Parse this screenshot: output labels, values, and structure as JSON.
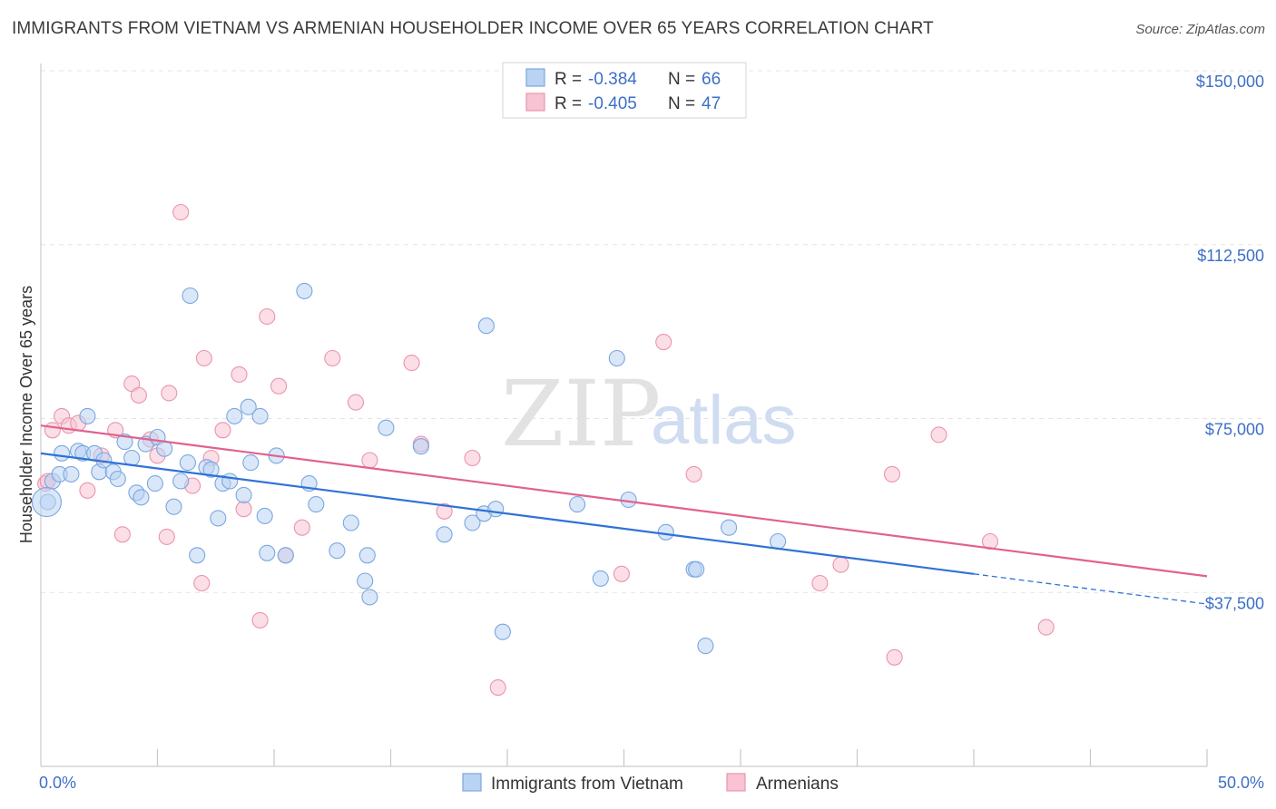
{
  "header": {
    "title": "IMMIGRANTS FROM VIETNAM VS ARMENIAN HOUSEHOLDER INCOME OVER 65 YEARS CORRELATION CHART",
    "source": "Source: ZipAtlas.com"
  },
  "watermark": {
    "zip": "ZIP",
    "atlas": "atlas"
  },
  "legend": {
    "r_label": "R =",
    "n_label": "N =",
    "rows": [
      {
        "r": "-0.384",
        "n": "66"
      },
      {
        "r": "-0.405",
        "n": "47"
      }
    ]
  },
  "colors": {
    "blue_fill": "#b9d3f3",
    "blue_stroke": "#7aa7e0",
    "blue_line": "#2f72d6",
    "pink_fill": "#f8c3d2",
    "pink_stroke": "#ea94ae",
    "pink_line": "#e0628d",
    "tick_text": "#3d6fc7"
  },
  "chart_data": {
    "type": "scatter",
    "title": "IMMIGRANTS FROM VIETNAM VS ARMENIAN HOUSEHOLDER INCOME OVER 65 YEARS CORRELATION CHART",
    "xlabel": "",
    "ylabel": "Householder Income Over 65 years",
    "xlim": [
      0,
      50
    ],
    "ylim": [
      0,
      155000
    ],
    "x_tick_labels": [
      "0.0%",
      "50.0%"
    ],
    "y_ticks": [
      37500,
      75000,
      112500,
      150000
    ],
    "y_tick_labels": [
      "$37,500",
      "$75,000",
      "$112,500",
      "$150,000"
    ],
    "grid": true,
    "legend_position": "top-center",
    "series": [
      {
        "name": "Immigrants from Vietnam",
        "color": "#7aa7e0",
        "trend": {
          "x": [
            0,
            40
          ],
          "y": [
            67500,
            41500
          ],
          "dashed_to": [
            50,
            35000
          ]
        },
        "points": [
          [
            0.3,
            57000
          ],
          [
            0.5,
            61500
          ],
          [
            0.8,
            63000
          ],
          [
            0.9,
            67500
          ],
          [
            1.3,
            63000
          ],
          [
            1.6,
            68000
          ],
          [
            1.8,
            67500
          ],
          [
            2.0,
            75500
          ],
          [
            2.3,
            67500
          ],
          [
            2.5,
            63500
          ],
          [
            2.7,
            66000
          ],
          [
            3.1,
            63500
          ],
          [
            3.3,
            62000
          ],
          [
            3.6,
            70000
          ],
          [
            3.9,
            66500
          ],
          [
            4.1,
            59000
          ],
          [
            4.3,
            58000
          ],
          [
            4.5,
            69500
          ],
          [
            4.9,
            61000
          ],
          [
            5.0,
            71000
          ],
          [
            5.3,
            68500
          ],
          [
            5.7,
            56000
          ],
          [
            6.0,
            61500
          ],
          [
            6.3,
            65500
          ],
          [
            6.4,
            101500
          ],
          [
            6.7,
            45500
          ],
          [
            7.1,
            64500
          ],
          [
            7.3,
            64000
          ],
          [
            7.6,
            53500
          ],
          [
            7.8,
            61000
          ],
          [
            8.1,
            61500
          ],
          [
            8.3,
            75500
          ],
          [
            8.7,
            58500
          ],
          [
            8.9,
            77500
          ],
          [
            9.0,
            65500
          ],
          [
            9.4,
            75500
          ],
          [
            9.6,
            54000
          ],
          [
            9.7,
            46000
          ],
          [
            10.1,
            67000
          ],
          [
            10.5,
            45500
          ],
          [
            11.3,
            102500
          ],
          [
            11.5,
            61000
          ],
          [
            11.8,
            56500
          ],
          [
            12.7,
            46500
          ],
          [
            13.3,
            52500
          ],
          [
            13.9,
            40000
          ],
          [
            14.0,
            45500
          ],
          [
            14.1,
            36500
          ],
          [
            14.8,
            73000
          ],
          [
            16.3,
            69000
          ],
          [
            17.3,
            50000
          ],
          [
            18.5,
            52500
          ],
          [
            19.0,
            54500
          ],
          [
            19.1,
            95000
          ],
          [
            19.5,
            55500
          ],
          [
            19.8,
            29000
          ],
          [
            23.0,
            56500
          ],
          [
            24.0,
            40500
          ],
          [
            24.7,
            88000
          ],
          [
            25.2,
            57500
          ],
          [
            26.8,
            50500
          ],
          [
            28.0,
            42500
          ],
          [
            28.1,
            42500
          ],
          [
            28.5,
            26000
          ],
          [
            29.5,
            51500
          ],
          [
            31.6,
            48500
          ]
        ]
      },
      {
        "name": "Armenians",
        "color": "#ea94ae",
        "trend": {
          "x": [
            0,
            50
          ],
          "y": [
            73500,
            41000
          ]
        },
        "points": [
          [
            0.2,
            61000
          ],
          [
            0.3,
            61500
          ],
          [
            0.5,
            72500
          ],
          [
            0.9,
            75500
          ],
          [
            1.2,
            73500
          ],
          [
            1.6,
            74000
          ],
          [
            2.0,
            59500
          ],
          [
            2.6,
            67000
          ],
          [
            3.2,
            72500
          ],
          [
            3.5,
            50000
          ],
          [
            3.9,
            82500
          ],
          [
            4.2,
            80000
          ],
          [
            4.7,
            70500
          ],
          [
            5.0,
            67000
          ],
          [
            5.4,
            49500
          ],
          [
            5.5,
            80500
          ],
          [
            6.0,
            119500
          ],
          [
            6.5,
            60500
          ],
          [
            6.9,
            39500
          ],
          [
            7.0,
            88000
          ],
          [
            7.3,
            66500
          ],
          [
            7.8,
            72500
          ],
          [
            8.5,
            84500
          ],
          [
            8.7,
            55500
          ],
          [
            9.4,
            31500
          ],
          [
            9.7,
            97000
          ],
          [
            10.2,
            82000
          ],
          [
            10.5,
            45500
          ],
          [
            11.2,
            51500
          ],
          [
            12.5,
            88000
          ],
          [
            13.5,
            78500
          ],
          [
            14.1,
            66000
          ],
          [
            15.9,
            87000
          ],
          [
            16.3,
            69500
          ],
          [
            17.3,
            55000
          ],
          [
            18.5,
            66500
          ],
          [
            19.6,
            17000
          ],
          [
            24.9,
            41500
          ],
          [
            26.7,
            91500
          ],
          [
            28.0,
            63000
          ],
          [
            33.4,
            39500
          ],
          [
            34.3,
            43500
          ],
          [
            36.5,
            63000
          ],
          [
            36.6,
            23500
          ],
          [
            38.5,
            71500
          ],
          [
            40.7,
            48500
          ],
          [
            43.1,
            30000
          ]
        ]
      }
    ]
  },
  "bottom_legend": {
    "series_a": "Immigrants from Vietnam",
    "series_b": "Armenians"
  }
}
